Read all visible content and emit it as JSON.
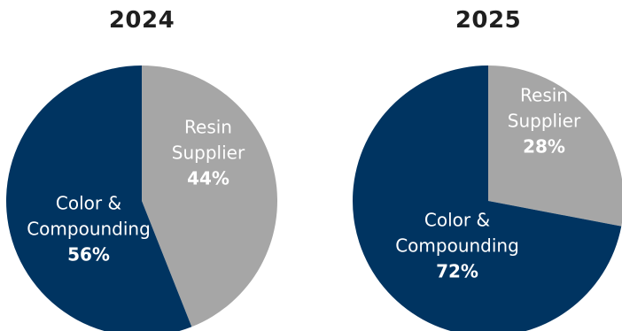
{
  "chart_data": [
    {
      "type": "pie",
      "title": "2024",
      "slices": [
        {
          "label_lines": [
            "Resin",
            "Supplier"
          ],
          "value": 44,
          "value_label": "44%",
          "color": "#a6a6a6"
        },
        {
          "label_lines": [
            "Color &",
            "Compounding"
          ],
          "value": 56,
          "value_label": "56%",
          "color": "#003461"
        }
      ]
    },
    {
      "type": "pie",
      "title": "2025",
      "slices": [
        {
          "label_lines": [
            "Resin",
            "Supplier"
          ],
          "value": 28,
          "value_label": "28%",
          "color": "#a6a6a6"
        },
        {
          "label_lines": [
            "Color &",
            "Compounding"
          ],
          "value": 72,
          "value_label": "72%",
          "color": "#003461"
        }
      ]
    }
  ],
  "colors": {
    "label_text": "#ffffff",
    "title_text": "#1f1f1f"
  }
}
